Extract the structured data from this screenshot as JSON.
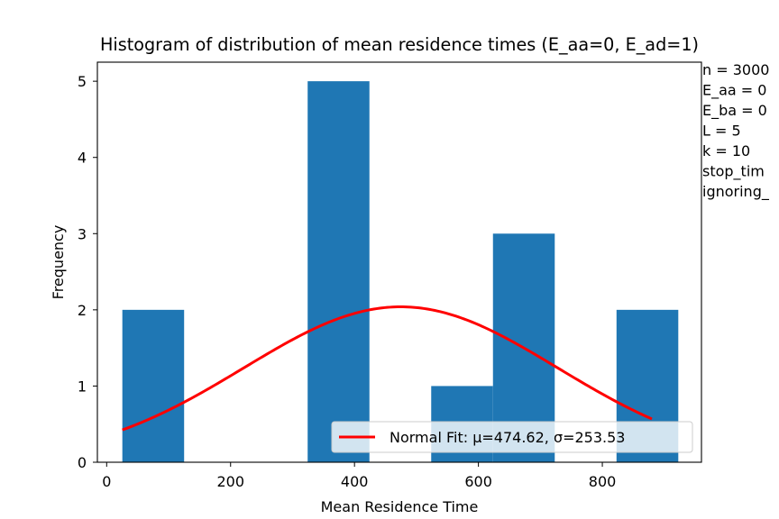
{
  "chart_data": {
    "type": "bar",
    "title": "Histogram of distribution of mean residence times (E_aa=0, E_ad=1)",
    "xlabel": "Mean Residence Time",
    "ylabel": "Frequency",
    "xlim": [
      -15,
      960
    ],
    "ylim": [
      0,
      5.25
    ],
    "xticks": [
      0,
      200,
      400,
      600,
      800
    ],
    "yticks": [
      0,
      1,
      2,
      3,
      4,
      5
    ],
    "bar_color": "#1f77b4",
    "fit_color": "#ff0000",
    "bins": [
      {
        "x0": 25.3,
        "x1": 125.0,
        "count": 2
      },
      {
        "x0": 125.0,
        "x1": 224.7,
        "count": 0
      },
      {
        "x0": 224.7,
        "x1": 324.4,
        "count": 0
      },
      {
        "x0": 324.4,
        "x1": 424.1,
        "count": 5
      },
      {
        "x0": 424.1,
        "x1": 523.8,
        "count": 0
      },
      {
        "x0": 523.8,
        "x1": 623.5,
        "count": 1
      },
      {
        "x0": 623.5,
        "x1": 723.2,
        "count": 3
      },
      {
        "x0": 723.2,
        "x1": 822.9,
        "count": 0
      },
      {
        "x0": 822.9,
        "x1": 922.6,
        "count": 2
      }
    ],
    "fit": {
      "mu": 474.62,
      "sigma": 253.53,
      "x_range": [
        25.3,
        880
      ],
      "label": "Normal Fit: μ=474.62, σ=253.53"
    },
    "legend_position": "lower right",
    "grid": false,
    "annotations": [
      "n = 3000",
      "E_aa = 0",
      "E_ba = 0",
      "L = 5",
      "k = 10",
      "stop_tim",
      "ignoring_"
    ]
  }
}
